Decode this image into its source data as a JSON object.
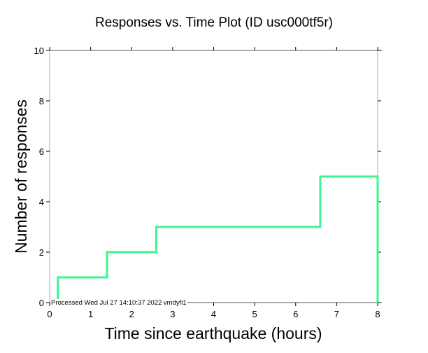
{
  "chart_data": {
    "type": "line",
    "step": true,
    "title": "Responses vs. Time Plot (ID usc000tf5r)",
    "xlabel": "Time since earthquake (hours)",
    "ylabel": "Number of responses",
    "xlim": [
      0,
      8
    ],
    "ylim": [
      0,
      10
    ],
    "xticks": [
      0,
      1,
      2,
      3,
      4,
      5,
      6,
      7,
      8
    ],
    "yticks": [
      0,
      2,
      4,
      6,
      8,
      10
    ],
    "grid": false,
    "series": [
      {
        "name": "responses",
        "color": "#3ef58f",
        "x": [
          0.2,
          0.2,
          1.4,
          1.4,
          2.6,
          2.6,
          6.6,
          6.6,
          8.0,
          8.0
        ],
        "y": [
          0,
          1,
          1,
          2,
          2,
          3,
          3,
          5,
          5,
          0
        ]
      }
    ],
    "annotation": "Processed Wed Jul 27 14:10:37 2022 vmdyfi1"
  }
}
